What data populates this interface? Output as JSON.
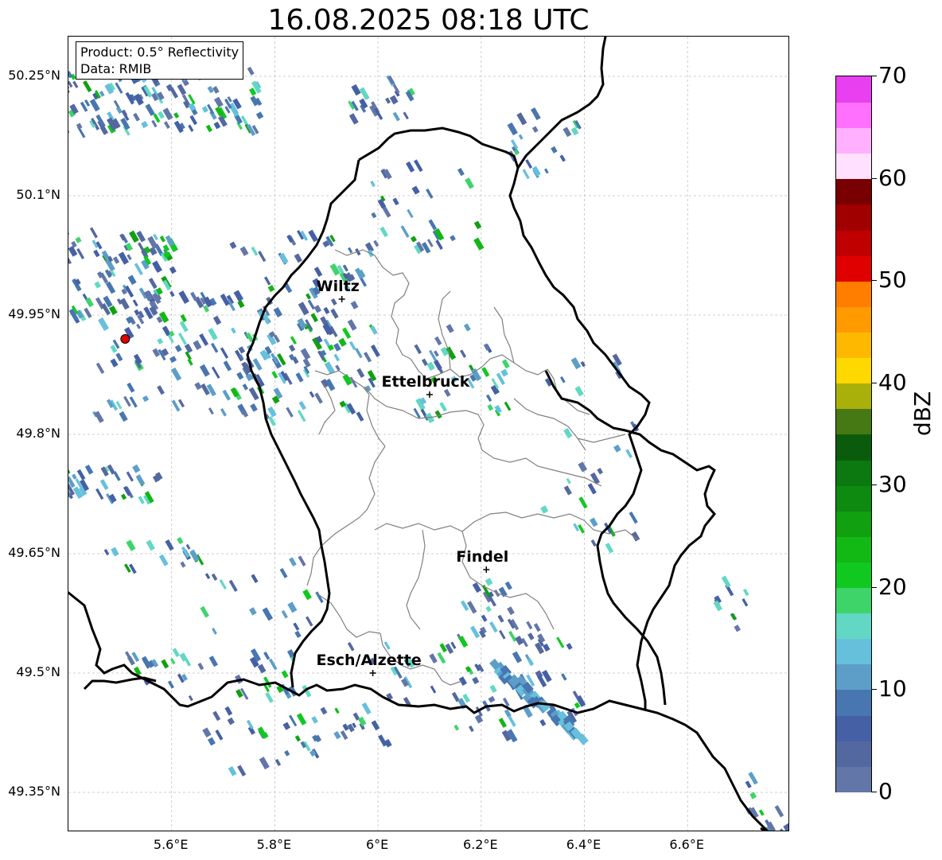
{
  "title": "16.08.2025 08:18 UTC",
  "info": {
    "product": "Product: 0.5° Reflectivity",
    "data": "Data: RMIB"
  },
  "axes": {
    "lat_ticks": [
      "50.25°N",
      "50.1°N",
      "49.95°N",
      "49.8°N",
      "49.65°N",
      "49.5°N",
      "49.35°N"
    ],
    "lon_ticks": [
      "5.6°E",
      "5.8°E",
      "6°E",
      "6.2°E",
      "6.4°E",
      "6.6°E"
    ]
  },
  "cities": [
    {
      "name": "Wiltz",
      "lon": 5.93,
      "lat": 49.97
    },
    {
      "name": "Ettelbruck",
      "lon": 6.1,
      "lat": 49.85
    },
    {
      "name": "Findel",
      "lon": 6.21,
      "lat": 49.63
    },
    {
      "name": "Esch/Alzette",
      "lon": 5.99,
      "lat": 49.5
    }
  ],
  "radar_site": {
    "lon": 5.51,
    "lat": 49.92,
    "color": "#e00000"
  },
  "colorbar": {
    "label": "dBZ",
    "ticks": [
      "0",
      "10",
      "20",
      "30",
      "40",
      "50",
      "60",
      "70"
    ],
    "colors": [
      "#6276a8",
      "#5468a0",
      "#4560a5",
      "#4876b0",
      "#5c9ec8",
      "#66c0dc",
      "#62d8c4",
      "#3ed46a",
      "#10c820",
      "#12b814",
      "#10a010",
      "#0e8a10",
      "#0c7810",
      "#0a5c0c",
      "#467814",
      "#aab00a",
      "#ffd800",
      "#ffb800",
      "#ff9a00",
      "#ff7e00",
      "#e00000",
      "#c00000",
      "#a00000",
      "#780000",
      "#ffe0ff",
      "#ffb0ff",
      "#ff70ff",
      "#e840f0"
    ]
  },
  "style": {
    "border_color": "#000000",
    "canton_color": "#808080",
    "grid_color": "#c0c0c0"
  }
}
